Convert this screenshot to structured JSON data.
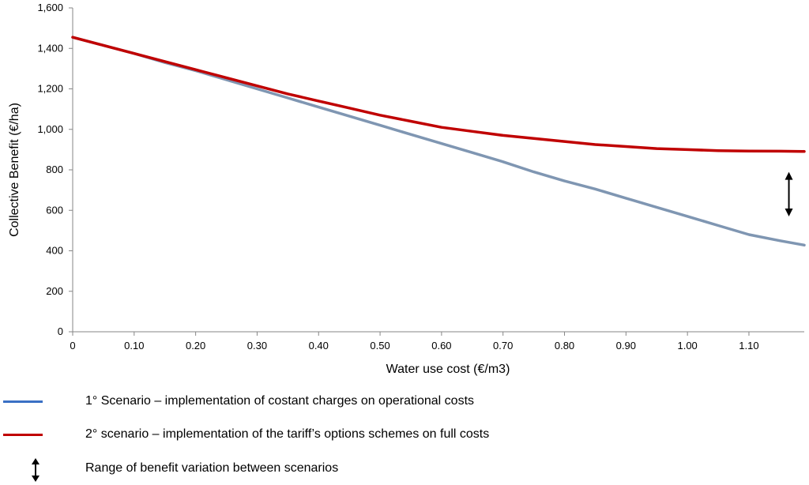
{
  "chart_data": {
    "type": "line",
    "xlabel": "Water use cost (€/m3)",
    "ylabel": "Collective Benefit (€/ha)",
    "xlim": [
      0,
      1.19
    ],
    "ylim": [
      0,
      1600
    ],
    "x_ticks": [
      "0",
      "0.10",
      "0.20",
      "0.30",
      "0.40",
      "0.50",
      "0.60",
      "0.70",
      "0.80",
      "0.90",
      "1.00",
      "1.10"
    ],
    "y_ticks": [
      "0",
      "200",
      "400",
      "600",
      "800",
      "1,000",
      "1,200",
      "1,400",
      "1,600"
    ],
    "grid": false,
    "legend_placement": "bottom",
    "series": [
      {
        "name": "1° Scenario – implementation of costant charges on operational costs",
        "color": "#7f96b2",
        "x": [
          0,
          0.05,
          0.1,
          0.15,
          0.2,
          0.25,
          0.3,
          0.35,
          0.4,
          0.45,
          0.5,
          0.55,
          0.6,
          0.65,
          0.7,
          0.75,
          0.8,
          0.85,
          0.9,
          0.95,
          1.0,
          1.05,
          1.1,
          1.15,
          1.19
        ],
        "y": [
          1455,
          1415,
          1375,
          1330,
          1290,
          1245,
          1200,
          1155,
          1110,
          1065,
          1020,
          975,
          930,
          885,
          840,
          790,
          745,
          705,
          660,
          615,
          570,
          525,
          480,
          450,
          428
        ]
      },
      {
        "name": "2° scenario – implementation of the tariff’s options schemes on full costs",
        "color": "#c00000",
        "x": [
          0,
          0.05,
          0.1,
          0.15,
          0.2,
          0.25,
          0.3,
          0.35,
          0.4,
          0.45,
          0.5,
          0.55,
          0.6,
          0.65,
          0.7,
          0.75,
          0.8,
          0.85,
          0.9,
          0.95,
          1.0,
          1.05,
          1.1,
          1.15,
          1.19
        ],
        "y": [
          1455,
          1415,
          1375,
          1335,
          1295,
          1255,
          1215,
          1175,
          1140,
          1105,
          1070,
          1040,
          1010,
          990,
          970,
          955,
          940,
          925,
          915,
          905,
          900,
          895,
          893,
          892,
          891
        ]
      }
    ],
    "annotations": [
      {
        "type": "double-arrow",
        "x": 1.165,
        "y_from": 570,
        "y_to": 790
      }
    ]
  },
  "legend": [
    {
      "label": "1° Scenario – implementation of costant charges on operational costs",
      "color": "#3a70c4",
      "symbol": "line"
    },
    {
      "label": "2° scenario – implementation of the tariff’s options schemes on full costs",
      "color": "#c00000",
      "symbol": "line"
    },
    {
      "label": "Range of benefit variation between scenarios",
      "color": "#000000",
      "symbol": "double-arrow"
    }
  ]
}
